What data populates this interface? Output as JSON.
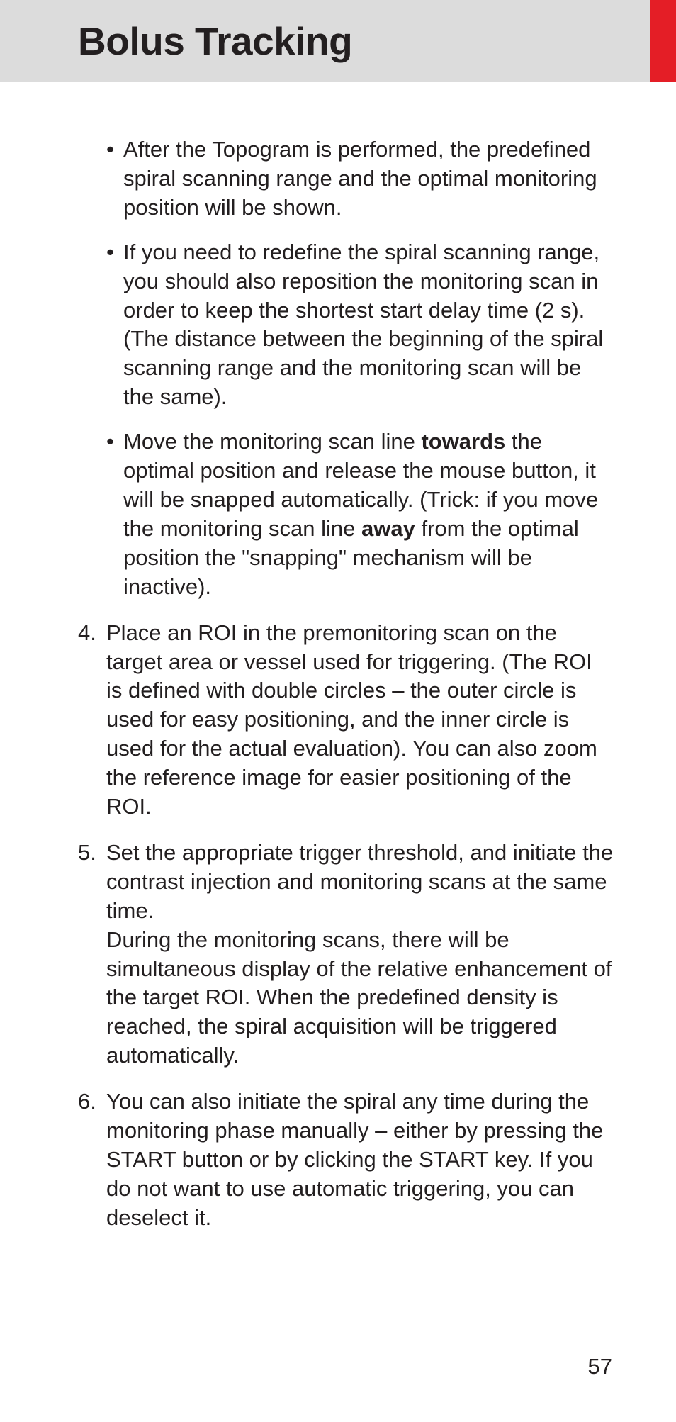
{
  "header": {
    "title": "Bolus Tracking",
    "accent_color": "#e41e26",
    "header_bg": "#dcdcdc",
    "title_fontsize": 55
  },
  "bullets": [
    "After the Topogram is performed, the predefined spiral scanning range and the optimal monitoring position will be shown.",
    "If you need to redefine the spiral scanning range, you should also reposition the monitoring scan in order to keep the shortest start delay time (2 s). (The distance between the beginning of the spiral scanning range and the monitoring scan will be the same)."
  ],
  "bullet3": {
    "pre": "Move the monitoring scan line ",
    "bold1": "towards",
    "mid": " the optimal position and release the mouse button, it will be snapped automatically. (Trick: if you move the monitoring scan line ",
    "bold2": "away",
    "post": " from the optimal position the \"snapping\" mechanism will be inactive)."
  },
  "numbered": {
    "n4": "4.",
    "t4": "Place an ROI in the premonitoring scan on the target area or vessel used for triggering. (The ROI is defined with double circles – the outer circle is used for easy positioning, and the inner circle is used for the actual evaluation). You can also zoom the reference image for easier positioning of the ROI.",
    "n5": "5.",
    "t5a": "Set the appropriate trigger threshold, and initiate the contrast injection and monitoring scans at the same time.",
    "t5b": "During the monitoring scans, there will be simultaneous display of the relative enhancement of the target ROI. When the predefined density is reached, the spiral acquisition will be triggered automatically.",
    "n6": "6.",
    "t6": "You can also initiate the spiral any time during the monitoring phase manually – either by pressing the START button or by clicking the START key. If you do not want to use automatic triggering, you can deselect it."
  },
  "page_number": "57",
  "body_fontsize": 31,
  "text_color": "#231f20",
  "background_color": "#ffffff"
}
